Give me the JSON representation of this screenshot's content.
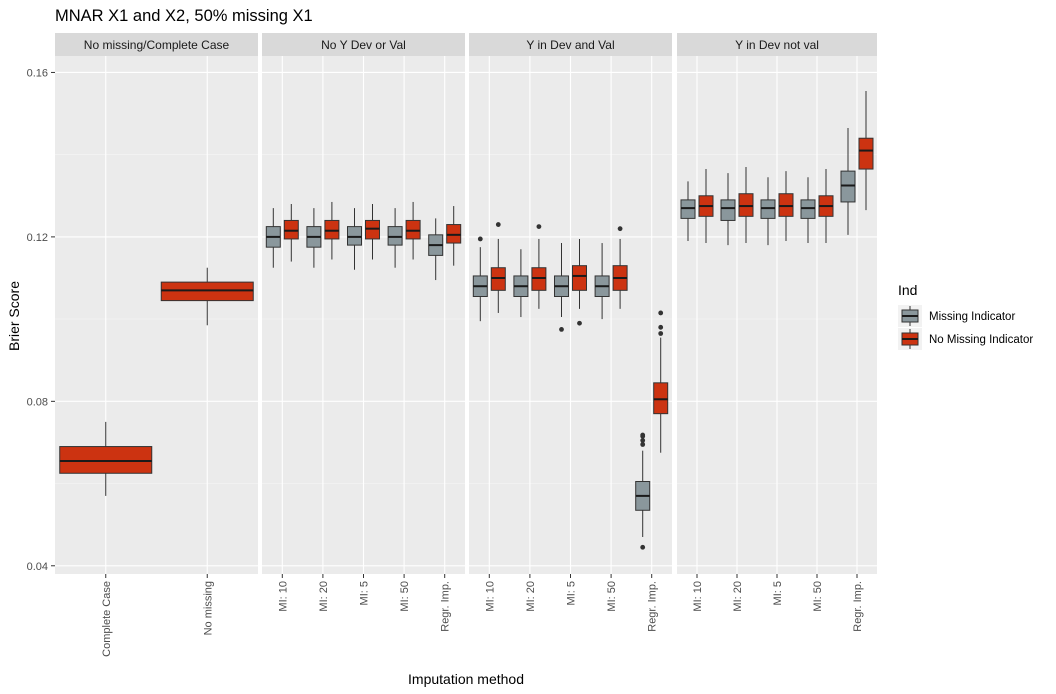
{
  "chart_data": {
    "type": "boxplot",
    "title": "MNAR X1 and X2, 50% missing X1",
    "xlabel": "Imputation method",
    "ylabel": "Brier Score",
    "ylim": [
      0.038,
      0.164
    ],
    "y_ticks": [
      0.04,
      0.08,
      0.12,
      0.16
    ],
    "y_tick_labels": [
      "0.04",
      "0.08",
      "0.12",
      "0.16"
    ],
    "legend": {
      "title": "Ind",
      "placement": "right",
      "entries": [
        {
          "key": "mi",
          "label": "Missing Indicator",
          "color": "#8A979C"
        },
        {
          "key": "nomi",
          "label": "No Missing Indicator",
          "color": "#CC3311"
        }
      ]
    },
    "panels": [
      {
        "strip": "No missing/Complete Case",
        "categories": [
          "Complete Case",
          "No missing"
        ],
        "boxes": [
          {
            "category": "Complete Case",
            "group": "nomi",
            "solo": true,
            "low": 0.057,
            "q1": 0.0625,
            "median": 0.0655,
            "q3": 0.069,
            "high": 0.075,
            "outliers": []
          },
          {
            "category": "No missing",
            "group": "nomi",
            "solo": true,
            "low": 0.0985,
            "q1": 0.1045,
            "median": 0.107,
            "q3": 0.109,
            "high": 0.1125,
            "outliers": []
          }
        ]
      },
      {
        "strip": "No Y Dev or Val",
        "categories": [
          "MI: 10",
          "MI: 20",
          "MI: 5",
          "MI: 50",
          "Regr. Imp."
        ],
        "boxes": [
          {
            "category": "MI: 10",
            "group": "mi",
            "low": 0.1125,
            "q1": 0.1175,
            "median": 0.12,
            "q3": 0.1225,
            "high": 0.127,
            "outliers": []
          },
          {
            "category": "MI: 10",
            "group": "nomi",
            "low": 0.114,
            "q1": 0.1195,
            "median": 0.1215,
            "q3": 0.124,
            "high": 0.128,
            "outliers": []
          },
          {
            "category": "MI: 20",
            "group": "mi",
            "low": 0.1125,
            "q1": 0.1175,
            "median": 0.12,
            "q3": 0.1225,
            "high": 0.127,
            "outliers": []
          },
          {
            "category": "MI: 20",
            "group": "nomi",
            "low": 0.1145,
            "q1": 0.1195,
            "median": 0.1215,
            "q3": 0.124,
            "high": 0.1285,
            "outliers": []
          },
          {
            "category": "MI: 5",
            "group": "mi",
            "low": 0.112,
            "q1": 0.118,
            "median": 0.12,
            "q3": 0.1225,
            "high": 0.127,
            "outliers": []
          },
          {
            "category": "MI: 5",
            "group": "nomi",
            "low": 0.1145,
            "q1": 0.1195,
            "median": 0.122,
            "q3": 0.124,
            "high": 0.128,
            "outliers": []
          },
          {
            "category": "MI: 50",
            "group": "mi",
            "low": 0.1125,
            "q1": 0.118,
            "median": 0.12,
            "q3": 0.1225,
            "high": 0.127,
            "outliers": []
          },
          {
            "category": "MI: 50",
            "group": "nomi",
            "low": 0.1145,
            "q1": 0.1195,
            "median": 0.1215,
            "q3": 0.124,
            "high": 0.1285,
            "outliers": []
          },
          {
            "category": "Regr. Imp.",
            "group": "mi",
            "low": 0.1095,
            "q1": 0.1155,
            "median": 0.118,
            "q3": 0.1205,
            "high": 0.1245,
            "outliers": []
          },
          {
            "category": "Regr. Imp.",
            "group": "nomi",
            "low": 0.113,
            "q1": 0.1185,
            "median": 0.1205,
            "q3": 0.123,
            "high": 0.1275,
            "outliers": []
          }
        ]
      },
      {
        "strip": "Y in Dev and Val",
        "categories": [
          "MI: 10",
          "MI: 20",
          "MI: 5",
          "MI: 50",
          "Regr. Imp."
        ],
        "boxes": [
          {
            "category": "MI: 10",
            "group": "mi",
            "low": 0.0995,
            "q1": 0.1055,
            "median": 0.108,
            "q3": 0.1105,
            "high": 0.1175,
            "outliers": [
              0.1195
            ]
          },
          {
            "category": "MI: 10",
            "group": "nomi",
            "low": 0.1015,
            "q1": 0.107,
            "median": 0.11,
            "q3": 0.1125,
            "high": 0.1195,
            "outliers": [
              0.123
            ]
          },
          {
            "category": "MI: 20",
            "group": "mi",
            "low": 0.1005,
            "q1": 0.1055,
            "median": 0.108,
            "q3": 0.1105,
            "high": 0.117,
            "outliers": []
          },
          {
            "category": "MI: 20",
            "group": "nomi",
            "low": 0.1025,
            "q1": 0.107,
            "median": 0.11,
            "q3": 0.1125,
            "high": 0.1195,
            "outliers": [
              0.1225
            ]
          },
          {
            "category": "MI: 5",
            "group": "mi",
            "low": 0.1005,
            "q1": 0.1055,
            "median": 0.108,
            "q3": 0.1105,
            "high": 0.1185,
            "outliers": [
              0.0975
            ]
          },
          {
            "category": "MI: 5",
            "group": "nomi",
            "low": 0.1025,
            "q1": 0.107,
            "median": 0.1105,
            "q3": 0.113,
            "high": 0.1195,
            "outliers": [
              0.099
            ]
          },
          {
            "category": "MI: 50",
            "group": "mi",
            "low": 0.1,
            "q1": 0.1055,
            "median": 0.108,
            "q3": 0.1105,
            "high": 0.1185,
            "outliers": []
          },
          {
            "category": "MI: 50",
            "group": "nomi",
            "low": 0.1025,
            "q1": 0.107,
            "median": 0.11,
            "q3": 0.113,
            "high": 0.1195,
            "outliers": [
              0.122
            ]
          },
          {
            "category": "Regr. Imp.",
            "group": "mi",
            "low": 0.047,
            "q1": 0.0535,
            "median": 0.057,
            "q3": 0.0605,
            "high": 0.068,
            "outliers": [
              0.0695,
              0.0705,
              0.0715,
              0.0718,
              0.0445
            ]
          },
          {
            "category": "Regr. Imp.",
            "group": "nomi",
            "low": 0.0675,
            "q1": 0.077,
            "median": 0.0805,
            "q3": 0.0845,
            "high": 0.0955,
            "outliers": [
              0.0965,
              0.098,
              0.1015
            ]
          }
        ]
      },
      {
        "strip": "Y in Dev not val",
        "categories": [
          "MI: 10",
          "MI: 20",
          "MI: 5",
          "MI: 50",
          "Regr. Imp."
        ],
        "boxes": [
          {
            "category": "MI: 10",
            "group": "mi",
            "low": 0.119,
            "q1": 0.1245,
            "median": 0.127,
            "q3": 0.129,
            "high": 0.1335,
            "outliers": []
          },
          {
            "category": "MI: 10",
            "group": "nomi",
            "low": 0.1185,
            "q1": 0.125,
            "median": 0.1275,
            "q3": 0.13,
            "high": 0.1365,
            "outliers": []
          },
          {
            "category": "MI: 20",
            "group": "mi",
            "low": 0.118,
            "q1": 0.124,
            "median": 0.127,
            "q3": 0.129,
            "high": 0.1355,
            "outliers": []
          },
          {
            "category": "MI: 20",
            "group": "nomi",
            "low": 0.1185,
            "q1": 0.125,
            "median": 0.1275,
            "q3": 0.1305,
            "high": 0.137,
            "outliers": []
          },
          {
            "category": "MI: 5",
            "group": "mi",
            "low": 0.118,
            "q1": 0.1245,
            "median": 0.127,
            "q3": 0.129,
            "high": 0.1345,
            "outliers": []
          },
          {
            "category": "MI: 5",
            "group": "nomi",
            "low": 0.119,
            "q1": 0.125,
            "median": 0.1275,
            "q3": 0.1305,
            "high": 0.136,
            "outliers": []
          },
          {
            "category": "MI: 50",
            "group": "mi",
            "low": 0.1185,
            "q1": 0.1245,
            "median": 0.127,
            "q3": 0.129,
            "high": 0.1345,
            "outliers": []
          },
          {
            "category": "MI: 50",
            "group": "nomi",
            "low": 0.1185,
            "q1": 0.125,
            "median": 0.1275,
            "q3": 0.13,
            "high": 0.1365,
            "outliers": []
          },
          {
            "category": "Regr. Imp.",
            "group": "mi",
            "low": 0.1205,
            "q1": 0.1285,
            "median": 0.1325,
            "q3": 0.136,
            "high": 0.1465,
            "outliers": []
          },
          {
            "category": "Regr. Imp.",
            "group": "nomi",
            "low": 0.1265,
            "q1": 0.1365,
            "median": 0.141,
            "q3": 0.144,
            "high": 0.1555,
            "outliers": []
          }
        ]
      }
    ]
  }
}
